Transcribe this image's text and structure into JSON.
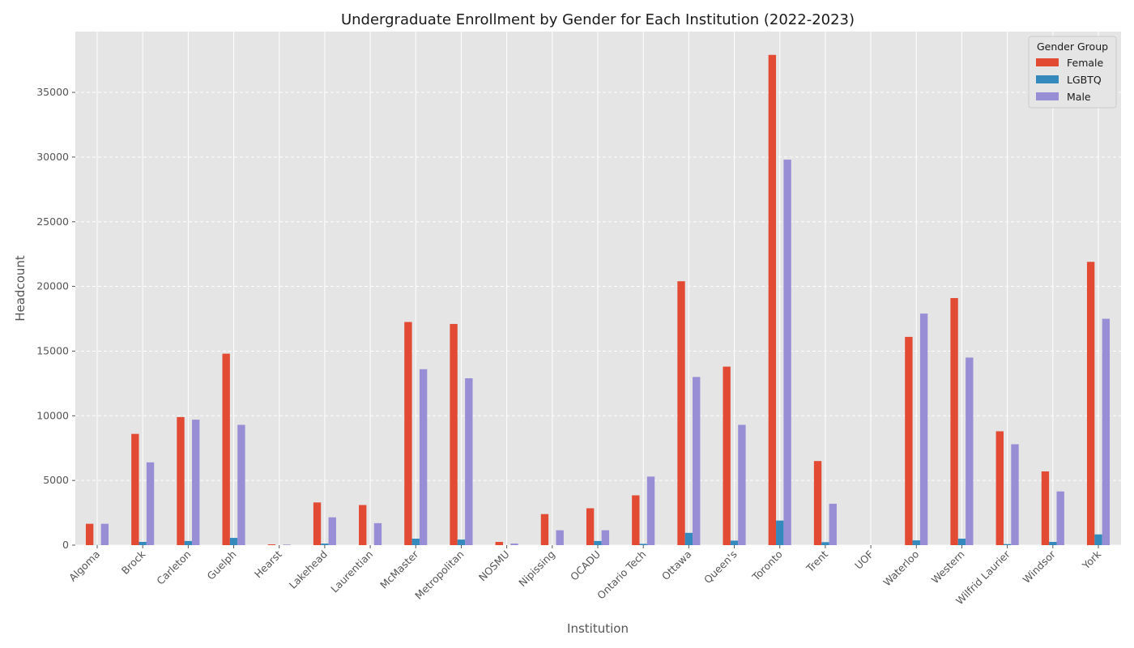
{
  "chart_data": {
    "type": "bar",
    "title": "Undergraduate Enrollment by Gender for Each Institution (2022-2023)",
    "xlabel": "Institution",
    "ylabel": "Headcount",
    "ylim": [
      0,
      39700
    ],
    "yticks": [
      0,
      5000,
      10000,
      15000,
      20000,
      25000,
      30000,
      35000
    ],
    "grid": true,
    "legend_title": "Gender Group",
    "legend_position": "top-right",
    "categories": [
      "Algoma",
      "Brock",
      "Carleton",
      "Guelph",
      "Hearst",
      "Lakehead",
      "Laurentian",
      "McMaster",
      "Metropolitan",
      "NOSMU",
      "Nipissing",
      "OCADU",
      "Ontario Tech",
      "Ottawa",
      "Queen's",
      "Toronto",
      "Trent",
      "UOF",
      "Waterloo",
      "Western",
      "Wilfrid Laurier",
      "Windsor",
      "York"
    ],
    "series": [
      {
        "name": "Female",
        "color": "#E24A33",
        "values": [
          1650,
          8600,
          9900,
          14800,
          60,
          3300,
          3100,
          17250,
          17100,
          250,
          2400,
          2850,
          3850,
          20400,
          13800,
          37900,
          6500,
          0,
          16100,
          19100,
          8800,
          5700,
          21900
        ]
      },
      {
        "name": "LGBTQ",
        "color": "#348ABD",
        "values": [
          10,
          250,
          320,
          560,
          0,
          120,
          0,
          500,
          430,
          0,
          0,
          320,
          100,
          950,
          350,
          1900,
          230,
          0,
          370,
          500,
          80,
          250,
          830
        ]
      },
      {
        "name": "Male",
        "color": "#988ED5",
        "values": [
          1650,
          6400,
          9700,
          9300,
          40,
          2150,
          1700,
          13600,
          12900,
          120,
          1150,
          1150,
          5300,
          13000,
          9300,
          29800,
          3200,
          0,
          17900,
          14500,
          7800,
          4150,
          17500
        ]
      }
    ]
  }
}
